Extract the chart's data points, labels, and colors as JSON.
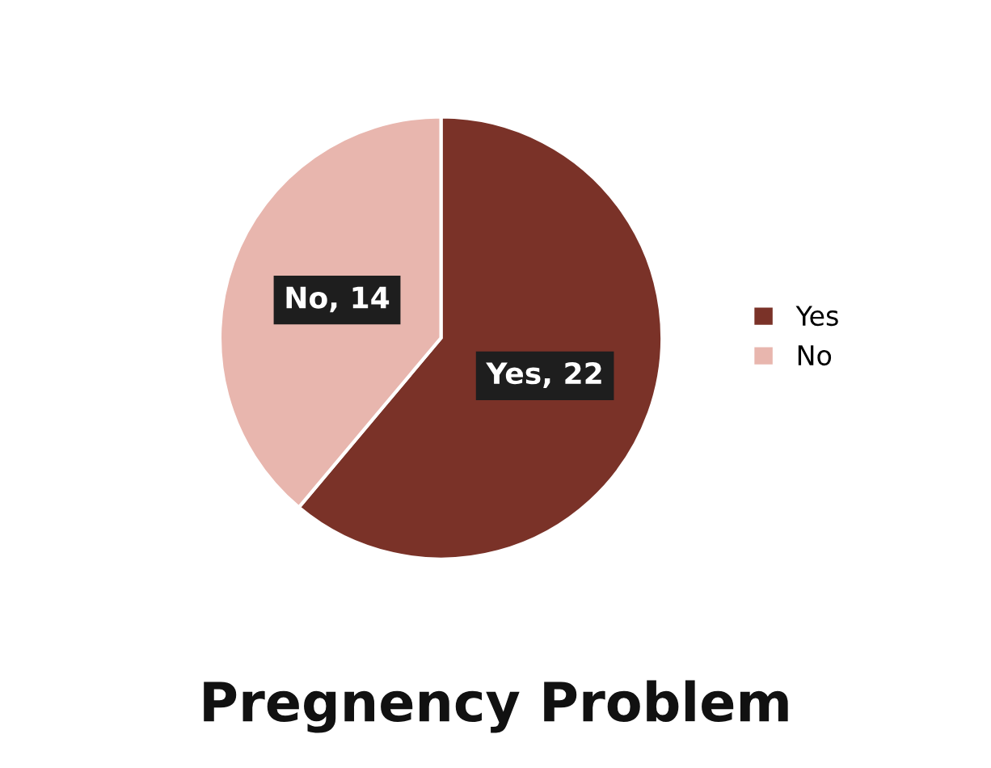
{
  "chart_data": {
    "type": "pie",
    "title": "Pregnency Problem",
    "categories": [
      "Yes",
      "No"
    ],
    "values": [
      22,
      14
    ],
    "colors": [
      "#7a3228",
      "#e8b6ae"
    ],
    "value_labels": [
      "Yes, 22",
      "No, 14"
    ],
    "legend": "right"
  }
}
